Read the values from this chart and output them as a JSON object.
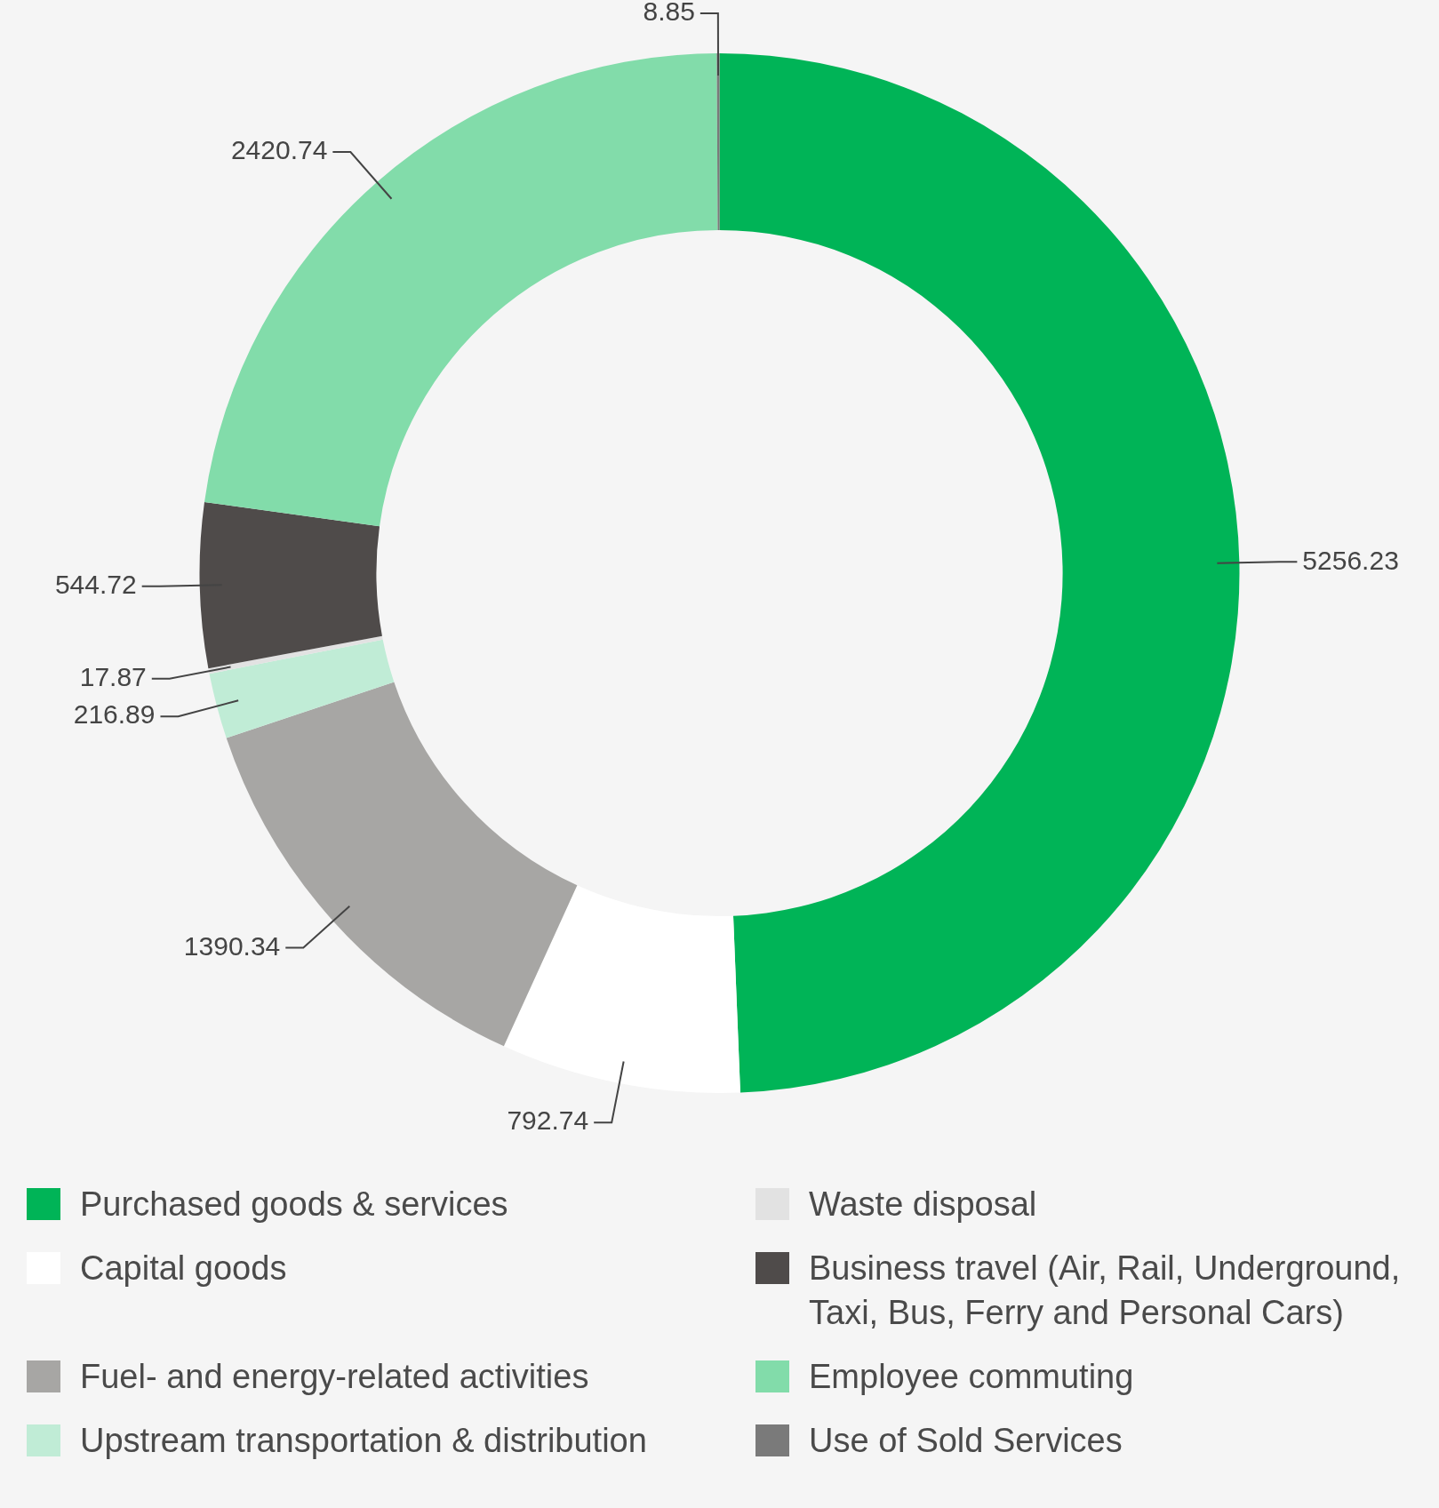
{
  "chart_data": {
    "type": "donut",
    "categories": [
      "Purchased goods & services",
      "Capital goods",
      "Fuel- and energy-related activities",
      "Upstream transportation & distribution",
      "Waste disposal",
      "Business travel (Air, Rail, Underground, Taxi, Bus, Ferry and Personal Cars)",
      "Employee commuting",
      "Use of Sold Services"
    ],
    "values": [
      5256.23,
      792.74,
      1390.34,
      216.89,
      17.87,
      544.72,
      2420.74,
      8.85
    ],
    "colors": [
      "#00b457",
      "#ffffff",
      "#a7a6a4",
      "#c0ecd6",
      "#e2e2e2",
      "#4f4b4a",
      "#82dcaa",
      "#7a7a7a"
    ],
    "data_labels": true,
    "legend": "bottom"
  }
}
